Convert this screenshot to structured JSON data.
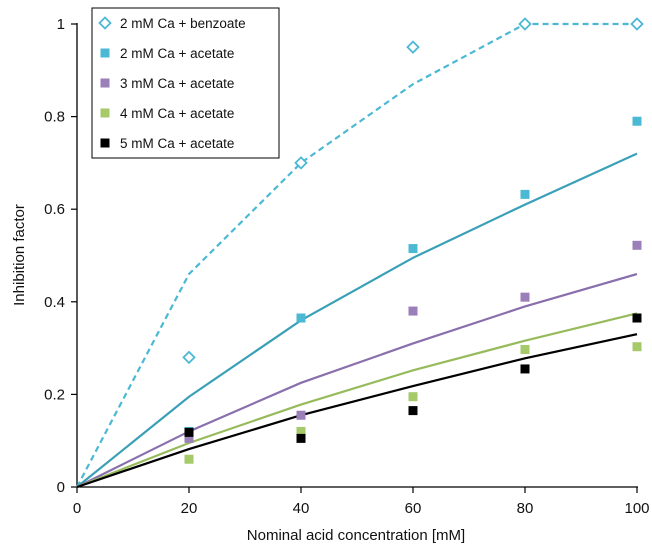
{
  "chart_data": {
    "type": "scatter",
    "xlabel": "Nominal acid concentration [mM]",
    "ylabel": "Inhibition factor",
    "xlim": [
      0,
      100
    ],
    "ylim": [
      0,
      1.0
    ],
    "xticks": [
      0,
      20,
      40,
      60,
      80,
      100
    ],
    "yticks": [
      0,
      0.2,
      0.4,
      0.6,
      0.8,
      1
    ],
    "ytick_labels": [
      "0",
      "0.2",
      "0.4",
      "0.6",
      "0.8",
      "1"
    ],
    "xtick_labels": [
      "0",
      "20",
      "40",
      "60",
      "80",
      "100"
    ],
    "grid": false,
    "legend_position": "top-left",
    "series": [
      {
        "name": "2 mM Ca + benzoate",
        "color": "#4bb8d4",
        "marker": "diamond-open",
        "line_style": "dashed",
        "points": {
          "x": [
            20,
            40,
            60,
            80,
            100
          ],
          "y": [
            0.28,
            0.7,
            0.95,
            1.0,
            1.0
          ]
        },
        "fit": {
          "x": [
            0,
            20,
            40,
            60,
            80,
            100
          ],
          "y": [
            0,
            0.46,
            0.7,
            0.87,
            1.0,
            1.0
          ]
        }
      },
      {
        "name": "2 mM Ca + acetate",
        "color": "#4bb8d4",
        "marker": "square",
        "line_color": "#3aa0b8",
        "line_style": "solid",
        "points": {
          "x": [
            20,
            40,
            60,
            80,
            100
          ],
          "y": [
            0.12,
            0.365,
            0.515,
            0.632,
            0.79
          ]
        },
        "fit": {
          "x": [
            0,
            20,
            40,
            60,
            80,
            100
          ],
          "y": [
            0,
            0.195,
            0.36,
            0.495,
            0.61,
            0.72
          ]
        }
      },
      {
        "name": "3 mM Ca + acetate",
        "color": "#9b7fb8",
        "marker": "square",
        "line_color": "#8a6fad",
        "line_style": "solid",
        "points": {
          "x": [
            20,
            40,
            60,
            80,
            100
          ],
          "y": [
            0.105,
            0.155,
            0.38,
            0.41,
            0.522
          ]
        },
        "fit": {
          "x": [
            0,
            20,
            40,
            60,
            80,
            100
          ],
          "y": [
            0,
            0.12,
            0.225,
            0.31,
            0.39,
            0.46
          ]
        }
      },
      {
        "name": "4 mM Ca + acetate",
        "color": "#a6c96a",
        "marker": "square",
        "line_color": "#97bb5c",
        "line_style": "solid",
        "points": {
          "x": [
            20,
            40,
            60,
            80,
            100
          ],
          "y": [
            0.06,
            0.12,
            0.195,
            0.297,
            0.303
          ]
        },
        "fit": {
          "x": [
            0,
            20,
            40,
            60,
            80,
            100
          ],
          "y": [
            0,
            0.095,
            0.178,
            0.252,
            0.316,
            0.375
          ]
        }
      },
      {
        "name": "5 mM Ca + acetate",
        "color": "#000000",
        "marker": "square",
        "line_color": "#000000",
        "line_style": "solid",
        "points": {
          "x": [
            20,
            40,
            60,
            80,
            100
          ],
          "y": [
            0.118,
            0.105,
            0.165,
            0.255,
            0.365
          ]
        },
        "fit": {
          "x": [
            0,
            20,
            40,
            60,
            80,
            100
          ],
          "y": [
            0,
            0.082,
            0.155,
            0.218,
            0.278,
            0.33
          ]
        }
      }
    ]
  }
}
